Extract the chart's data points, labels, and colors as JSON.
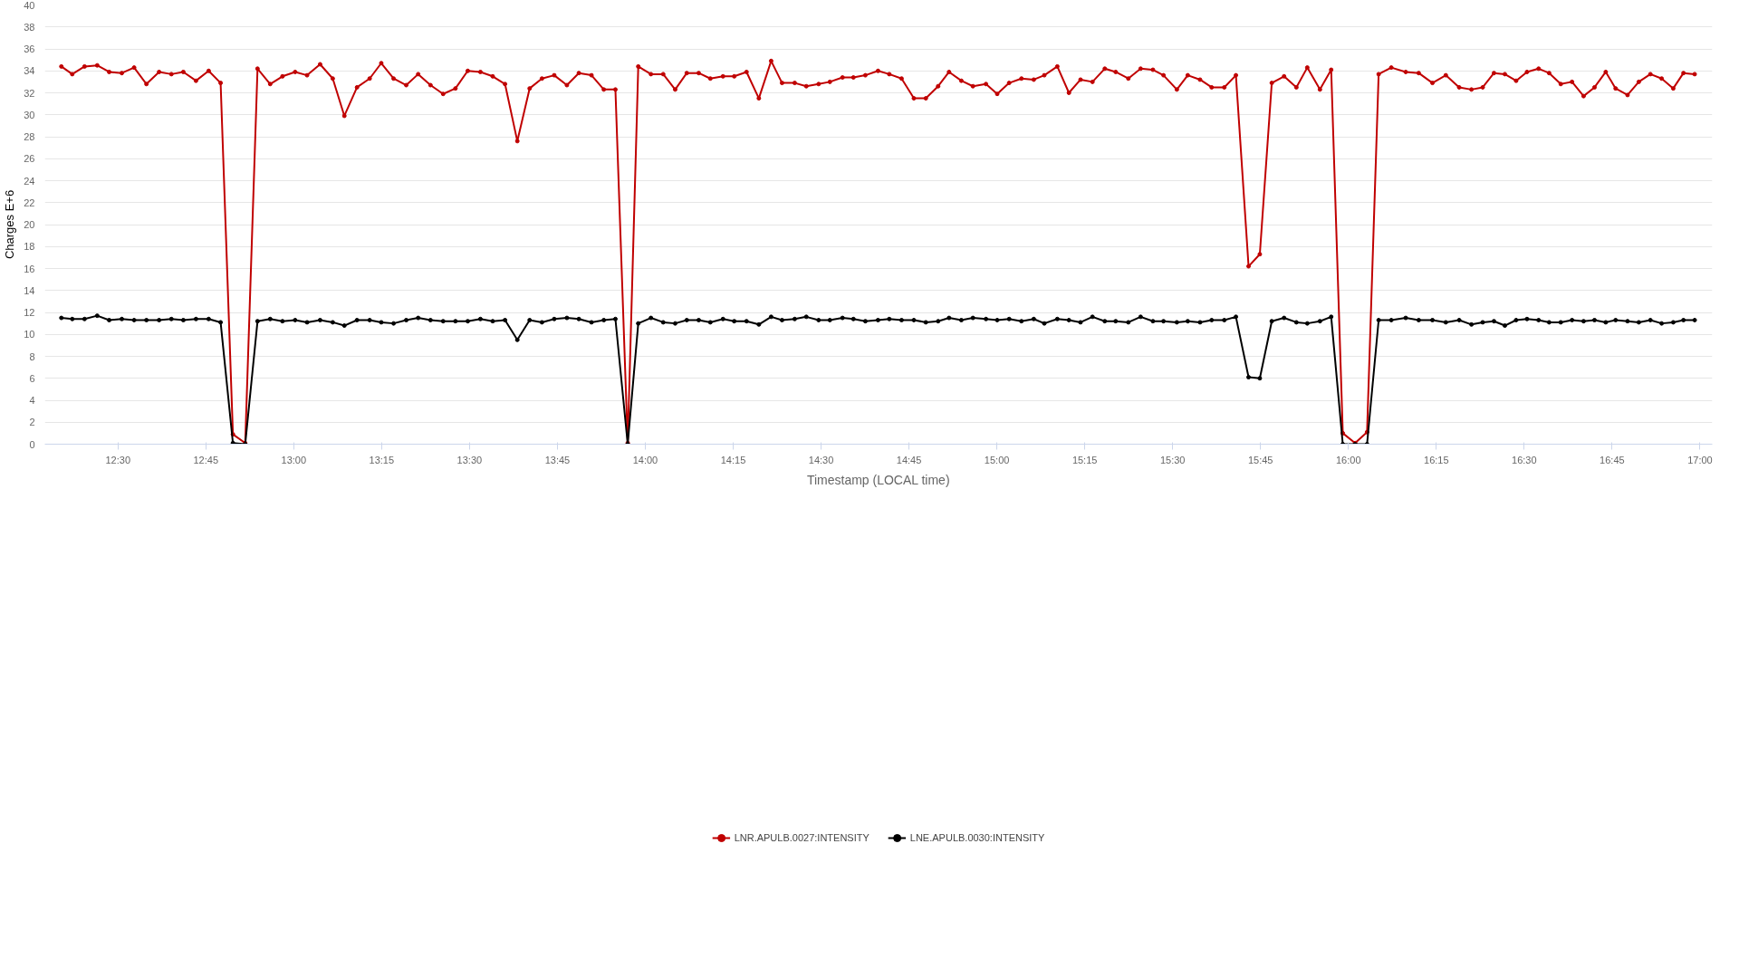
{
  "chart_data": {
    "type": "line",
    "xlabel": "Timestamp (LOCAL time)",
    "ylabel": "Charges E+6",
    "x": [
      12.339,
      12.37,
      12.405,
      12.441,
      12.475,
      12.511,
      12.546,
      12.581,
      12.617,
      12.652,
      12.686,
      12.722,
      12.758,
      12.792,
      12.827,
      12.862,
      12.897,
      12.933,
      12.968,
      13.004,
      13.038,
      13.075,
      13.111,
      13.144,
      13.18,
      13.216,
      13.249,
      13.284,
      13.32,
      13.354,
      13.389,
      13.425,
      13.46,
      13.495,
      13.531,
      13.566,
      13.601,
      13.636,
      13.671,
      13.706,
      13.741,
      13.777,
      13.811,
      13.847,
      13.882,
      13.915,
      13.95,
      13.98,
      14.016,
      14.051,
      14.085,
      14.118,
      14.152,
      14.185,
      14.221,
      14.253,
      14.288,
      14.323,
      14.358,
      14.389,
      14.425,
      14.458,
      14.493,
      14.525,
      14.561,
      14.592,
      14.626,
      14.662,
      14.694,
      14.729,
      14.764,
      14.798,
      14.833,
      14.864,
      14.899,
      14.932,
      14.969,
      15.001,
      15.035,
      15.07,
      15.105,
      15.135,
      15.172,
      15.205,
      15.238,
      15.272,
      15.307,
      15.338,
      15.374,
      15.409,
      15.444,
      15.474,
      15.512,
      15.543,
      15.578,
      15.611,
      15.647,
      15.68,
      15.716,
      15.748,
      15.782,
      15.817,
      15.852,
      15.883,
      15.919,
      15.951,
      15.984,
      16.019,
      16.053,
      16.086,
      16.122,
      16.163,
      16.2,
      16.239,
      16.277,
      16.315,
      16.35,
      16.382,
      16.414,
      16.445,
      16.477,
      16.508,
      16.541,
      16.571,
      16.604,
      16.636,
      16.669,
      16.7,
      16.732,
      16.76,
      16.794,
      16.826,
      16.859,
      16.891,
      16.924,
      16.953,
      16.985
    ],
    "series": [
      {
        "name": "LNR.APULB.0027:INTENSITY",
        "color": "#c00000",
        "values": [
          34.4,
          33.7,
          34.4,
          34.5,
          33.9,
          33.8,
          34.3,
          32.8,
          33.9,
          33.7,
          33.9,
          33.1,
          34.0,
          32.9,
          0.9,
          0.1,
          34.2,
          32.8,
          33.5,
          33.9,
          33.6,
          34.6,
          33.3,
          29.9,
          32.5,
          33.3,
          34.7,
          33.3,
          32.7,
          33.7,
          32.7,
          31.9,
          32.4,
          34.0,
          33.9,
          33.5,
          32.8,
          27.6,
          32.4,
          33.3,
          33.6,
          32.7,
          33.8,
          33.6,
          32.3,
          32.3,
          0.1,
          34.4,
          33.7,
          33.7,
          32.3,
          33.8,
          33.8,
          33.3,
          33.5,
          33.5,
          33.9,
          31.5,
          34.9,
          32.9,
          32.9,
          32.6,
          32.8,
          33.0,
          33.4,
          33.4,
          33.6,
          34.0,
          33.7,
          33.3,
          31.5,
          31.5,
          32.6,
          33.9,
          33.1,
          32.6,
          32.8,
          31.9,
          32.9,
          33.3,
          33.2,
          33.6,
          34.4,
          32.0,
          33.2,
          33.0,
          34.2,
          33.9,
          33.3,
          34.2,
          34.1,
          33.6,
          32.3,
          33.6,
          33.2,
          32.5,
          32.5,
          33.6,
          16.2,
          17.3,
          32.9,
          33.5,
          32.5,
          34.3,
          32.3,
          34.1,
          1.0,
          0.1,
          1.1,
          33.7,
          34.3,
          33.9,
          33.8,
          32.9,
          33.6,
          32.5,
          32.3,
          32.5,
          33.8,
          33.7,
          33.1,
          33.9,
          34.2,
          33.8,
          32.8,
          33.0,
          31.7,
          32.5,
          33.9,
          32.4,
          31.8,
          33.0,
          33.7,
          33.3,
          32.4,
          33.8,
          33.7
        ]
      },
      {
        "name": "LNE.APULB.0030:INTENSITY",
        "color": "#000000",
        "values": [
          11.5,
          11.4,
          11.4,
          11.7,
          11.3,
          11.4,
          11.3,
          11.3,
          11.3,
          11.4,
          11.3,
          11.4,
          11.4,
          11.1,
          0.1,
          0.0,
          11.2,
          11.4,
          11.2,
          11.3,
          11.1,
          11.3,
          11.1,
          10.8,
          11.3,
          11.3,
          11.1,
          11.0,
          11.3,
          11.5,
          11.3,
          11.2,
          11.2,
          11.2,
          11.4,
          11.2,
          11.3,
          9.5,
          11.3,
          11.1,
          11.4,
          11.5,
          11.4,
          11.1,
          11.3,
          11.4,
          0.0,
          11.0,
          11.5,
          11.1,
          11.0,
          11.3,
          11.3,
          11.1,
          11.4,
          11.2,
          11.2,
          10.9,
          11.6,
          11.3,
          11.4,
          11.6,
          11.3,
          11.3,
          11.5,
          11.4,
          11.2,
          11.3,
          11.4,
          11.3,
          11.3,
          11.1,
          11.2,
          11.5,
          11.3,
          11.5,
          11.4,
          11.3,
          11.4,
          11.2,
          11.4,
          11.0,
          11.4,
          11.3,
          11.1,
          11.6,
          11.2,
          11.2,
          11.1,
          11.6,
          11.2,
          11.2,
          11.1,
          11.2,
          11.1,
          11.3,
          11.3,
          11.6,
          6.1,
          6.0,
          11.2,
          11.5,
          11.1,
          11.0,
          11.2,
          11.6,
          0.0,
          0.0,
          0.0,
          11.3,
          11.3,
          11.5,
          11.3,
          11.3,
          11.1,
          11.3,
          10.9,
          11.1,
          11.2,
          10.8,
          11.3,
          11.4,
          11.3,
          11.1,
          11.1,
          11.3,
          11.2,
          11.3,
          11.1,
          11.3,
          11.2,
          11.1,
          11.3,
          11.0,
          11.1,
          11.3,
          11.3
        ]
      }
    ],
    "xlim": [
      12.292,
      17.035
    ],
    "xticks": [
      {
        "value": 12.5,
        "label": "12:30"
      },
      {
        "value": 12.75,
        "label": "12:45"
      },
      {
        "value": 13.0,
        "label": "13:00"
      },
      {
        "value": 13.25,
        "label": "13:15"
      },
      {
        "value": 13.5,
        "label": "13:30"
      },
      {
        "value": 13.75,
        "label": "13:45"
      },
      {
        "value": 14.0,
        "label": "14:00"
      },
      {
        "value": 14.25,
        "label": "14:15"
      },
      {
        "value": 14.5,
        "label": "14:30"
      },
      {
        "value": 14.75,
        "label": "14:45"
      },
      {
        "value": 15.0,
        "label": "15:00"
      },
      {
        "value": 15.25,
        "label": "15:15"
      },
      {
        "value": 15.5,
        "label": "15:30"
      },
      {
        "value": 15.75,
        "label": "15:45"
      },
      {
        "value": 16.0,
        "label": "16:00"
      },
      {
        "value": 16.25,
        "label": "16:15"
      },
      {
        "value": 16.5,
        "label": "16:30"
      },
      {
        "value": 16.75,
        "label": "16:45"
      },
      {
        "value": 17.0,
        "label": "17:00"
      }
    ],
    "ylim": [
      0,
      40
    ],
    "yticks": [
      0,
      2,
      4,
      6,
      8,
      10,
      12,
      14,
      16,
      18,
      20,
      22,
      24,
      26,
      28,
      30,
      32,
      34,
      36,
      38,
      40
    ],
    "grid": "y",
    "legend": "bottom",
    "marker": "circle",
    "line_style": "solid"
  }
}
